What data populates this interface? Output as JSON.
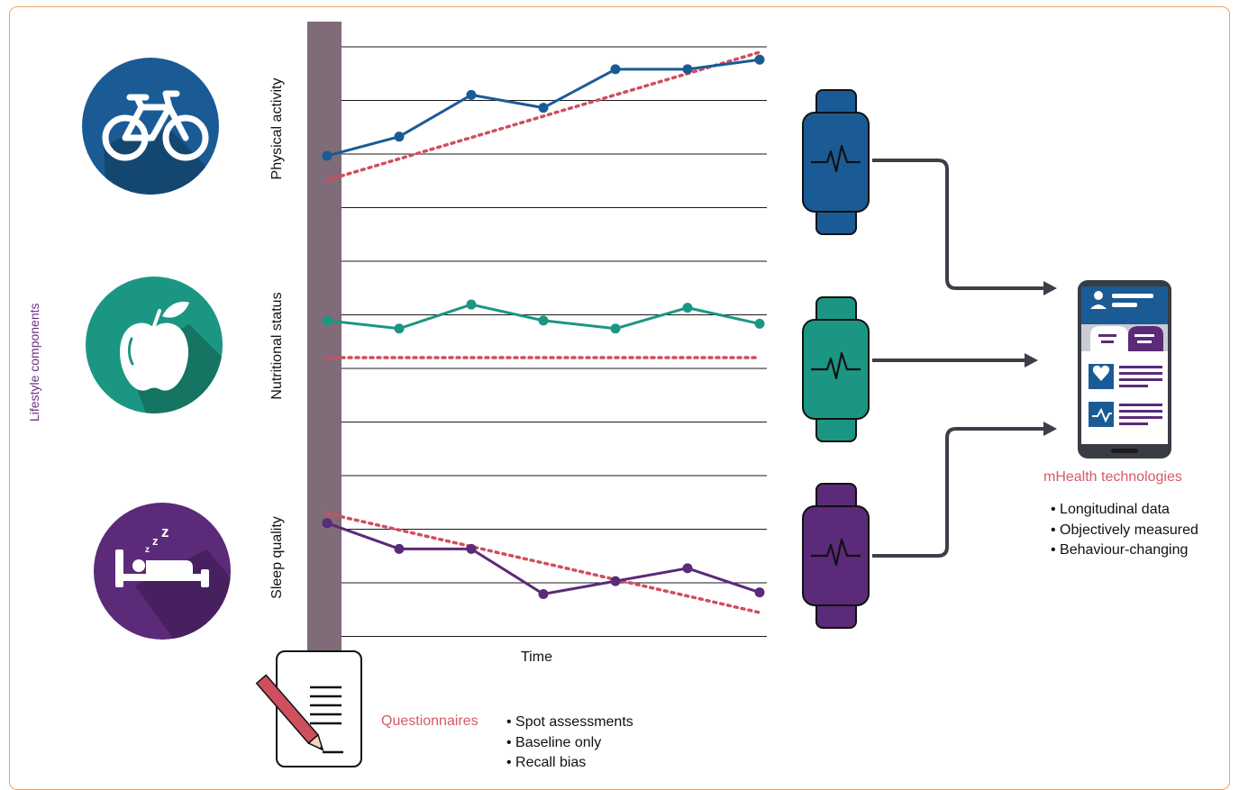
{
  "labels": {
    "lifestyle_components": "Lifestyle components",
    "physical_activity": "Physical activity",
    "nutritional_status": "Nutritional status",
    "sleep_quality": "Sleep quality",
    "time": "Time",
    "questionnaires": "Questionnaires",
    "mhealth": "mHealth technologies"
  },
  "questionnaire_points": [
    "Spot assessments",
    "Baseline only",
    "Recall bias"
  ],
  "mhealth_points": [
    "Longitudinal data",
    "Objectively measured",
    "Behaviour-changing"
  ],
  "icons": {
    "physical": "bicycle-icon",
    "nutrition": "apple-icon",
    "sleep": "bed-icon",
    "watch": "smartwatch-icon",
    "phone": "smartphone-app-icon",
    "questionnaire": "questionnaire-pencil-icon"
  },
  "colors": {
    "physical": "#1a5b96",
    "nutrition": "#1b9683",
    "sleep": "#5b2a78",
    "trend": "#cf4f5e",
    "label_accent": "#d65a67",
    "lifestyle_label": "#6b2f85",
    "baseline_bar": "#806b78",
    "arrow": "#3c3f47"
  },
  "chart_data": {
    "type": "line",
    "series": [
      {
        "points": [
          1.6,
          2.2,
          3.5,
          3.1,
          4.3,
          4.3,
          4.6
        ]
      },
      {
        "points": [
          3.15,
          2.9,
          3.65,
          3.15,
          2.9,
          3.55,
          3.05
        ]
      },
      {
        "points": [
          3.5,
          2.7,
          2.7,
          1.3,
          1.7,
          2.1,
          1.35
        ]
      }
    ]
  }
}
